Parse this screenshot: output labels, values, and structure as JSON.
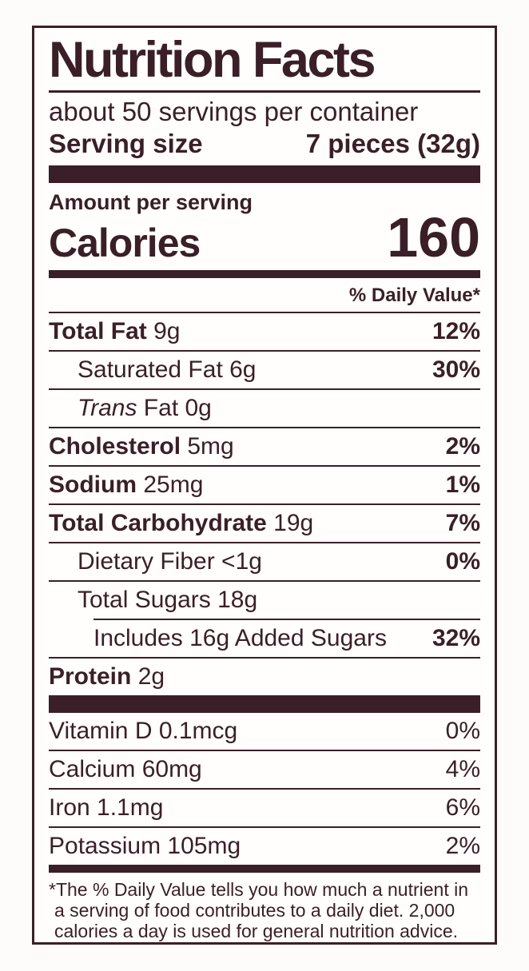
{
  "colors": {
    "ink": "#3a1f28",
    "page_bg": "#fdfcfb",
    "label_bg": "#fffefd"
  },
  "label": {
    "title": "Nutrition Facts",
    "servings_per_container": "about 50 servings per container",
    "serving_size": {
      "label": "Serving size",
      "value": "7 pieces (32g)"
    },
    "amount_per_serving": "Amount per serving",
    "calories": {
      "label": "Calories",
      "value": "160"
    },
    "daily_value_header": "% Daily Value*",
    "nutrients": [
      {
        "name": "Total Fat",
        "amount": "9g",
        "percent": "12%",
        "name_bold": true,
        "percent_bold": true,
        "indent": 0
      },
      {
        "name": "Saturated Fat",
        "amount": "6g",
        "percent": "30%",
        "percent_bold": true,
        "indent": 1
      },
      {
        "name": "Trans",
        "name_italic": true,
        "amount": "Fat 0g",
        "percent": "",
        "indent": 1
      },
      {
        "name": "Cholesterol",
        "amount": "5mg",
        "percent": "2%",
        "name_bold": true,
        "percent_bold": true,
        "indent": 0
      },
      {
        "name": "Sodium",
        "amount": "25mg",
        "percent": "1%",
        "name_bold": true,
        "percent_bold": true,
        "indent": 0
      },
      {
        "name": "Total Carbohydrate",
        "amount": "19g",
        "percent": "7%",
        "name_bold": true,
        "percent_bold": true,
        "indent": 0
      },
      {
        "name": "Dietary Fiber",
        "amount": "<1g",
        "percent": "0%",
        "percent_bold": true,
        "indent": 1
      },
      {
        "name": "Total Sugars",
        "amount": "18g",
        "percent": "",
        "indent": 1
      },
      {
        "name": "Includes 16g Added Sugars",
        "amount": "",
        "percent": "32%",
        "percent_bold": true,
        "indent": 2,
        "sep_indent": true
      },
      {
        "name": "Protein",
        "amount": "2g",
        "percent": "",
        "name_bold": true,
        "indent": 0
      }
    ],
    "vitamins": [
      {
        "name": "Vitamin D",
        "amount": "0.1mcg",
        "percent": "0%"
      },
      {
        "name": "Calcium",
        "amount": "60mg",
        "percent": "4%"
      },
      {
        "name": "Iron",
        "amount": "1.1mg",
        "percent": "6%"
      },
      {
        "name": "Potassium",
        "amount": "105mg",
        "percent": "2%"
      }
    ],
    "footnote": "*The % Daily Value tells you how much a nutrient in a serving of food contributes to a daily diet. 2,000 calories a day is used for general nutrition advice."
  }
}
